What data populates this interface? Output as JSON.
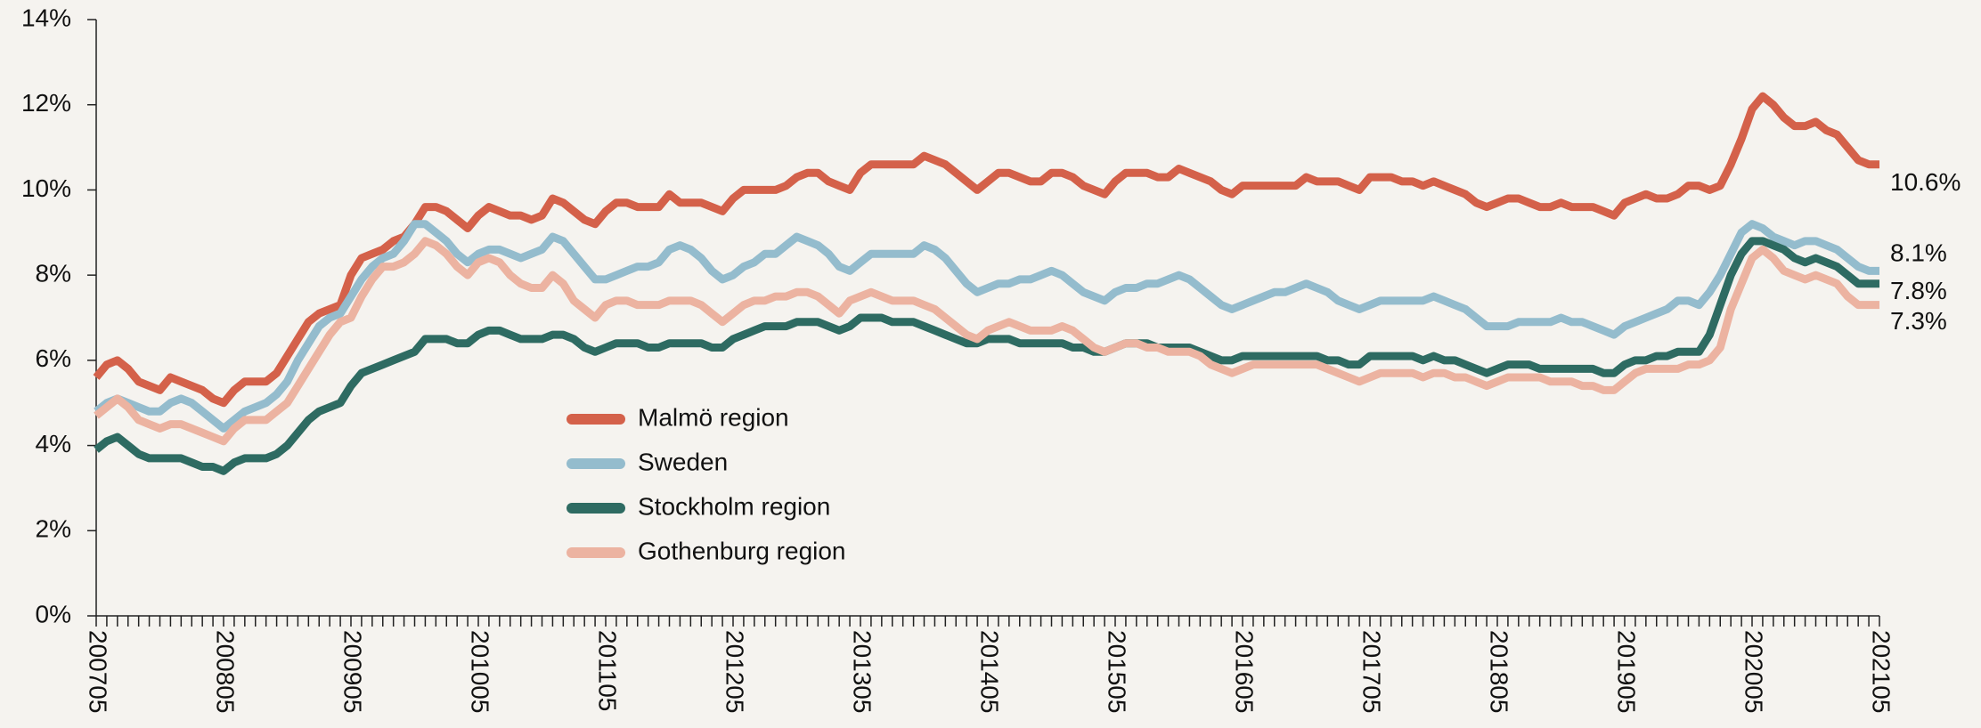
{
  "chart_data": {
    "type": "line",
    "categories": [
      "200705",
      null,
      null,
      null,
      null,
      null,
      null,
      null,
      null,
      null,
      null,
      null,
      "200805",
      null,
      null,
      null,
      null,
      null,
      null,
      null,
      null,
      null,
      null,
      null,
      "200905",
      null,
      null,
      null,
      null,
      null,
      null,
      null,
      null,
      null,
      null,
      null,
      "201005",
      null,
      null,
      null,
      null,
      null,
      null,
      null,
      null,
      null,
      null,
      null,
      "201105",
      null,
      null,
      null,
      null,
      null,
      null,
      null,
      null,
      null,
      null,
      null,
      "201205",
      null,
      null,
      null,
      null,
      null,
      null,
      null,
      null,
      null,
      null,
      null,
      "201305",
      null,
      null,
      null,
      null,
      null,
      null,
      null,
      null,
      null,
      null,
      null,
      "201405",
      null,
      null,
      null,
      null,
      null,
      null,
      null,
      null,
      null,
      null,
      null,
      "201505",
      null,
      null,
      null,
      null,
      null,
      null,
      null,
      null,
      null,
      null,
      null,
      "201605",
      null,
      null,
      null,
      null,
      null,
      null,
      null,
      null,
      null,
      null,
      null,
      "201705",
      null,
      null,
      null,
      null,
      null,
      null,
      null,
      null,
      null,
      null,
      null,
      "201805",
      null,
      null,
      null,
      null,
      null,
      null,
      null,
      null,
      null,
      null,
      null,
      "201905",
      null,
      null,
      null,
      null,
      null,
      null,
      null,
      null,
      null,
      null,
      null,
      "202005",
      null,
      null,
      null,
      null,
      null,
      null,
      null,
      null,
      null,
      null,
      null,
      "202105"
    ],
    "series": [
      {
        "name": "Malmö region",
        "color": "#d4614a",
        "end_label": "10.6%",
        "values": [
          5.6,
          5.9,
          6.0,
          5.8,
          5.5,
          5.4,
          5.3,
          5.6,
          5.5,
          5.4,
          5.3,
          5.1,
          5.0,
          5.3,
          5.5,
          5.5,
          5.5,
          5.7,
          6.1,
          6.5,
          6.9,
          7.1,
          7.2,
          7.3,
          8.0,
          8.4,
          8.5,
          8.6,
          8.8,
          8.9,
          9.2,
          9.6,
          9.6,
          9.5,
          9.3,
          9.1,
          9.4,
          9.6,
          9.5,
          9.4,
          9.4,
          9.3,
          9.4,
          9.8,
          9.7,
          9.5,
          9.3,
          9.2,
          9.5,
          9.7,
          9.7,
          9.6,
          9.6,
          9.6,
          9.9,
          9.7,
          9.7,
          9.7,
          9.6,
          9.5,
          9.8,
          10.0,
          10.0,
          10.0,
          10.0,
          10.1,
          10.3,
          10.4,
          10.4,
          10.2,
          10.1,
          10.0,
          10.4,
          10.6,
          10.6,
          10.6,
          10.6,
          10.6,
          10.8,
          10.7,
          10.6,
          10.4,
          10.2,
          10.0,
          10.2,
          10.4,
          10.4,
          10.3,
          10.2,
          10.2,
          10.4,
          10.4,
          10.3,
          10.1,
          10.0,
          9.9,
          10.2,
          10.4,
          10.4,
          10.4,
          10.3,
          10.3,
          10.5,
          10.4,
          10.3,
          10.2,
          10.0,
          9.9,
          10.1,
          10.1,
          10.1,
          10.1,
          10.1,
          10.1,
          10.3,
          10.2,
          10.2,
          10.2,
          10.1,
          10.0,
          10.3,
          10.3,
          10.3,
          10.2,
          10.2,
          10.1,
          10.2,
          10.1,
          10.0,
          9.9,
          9.7,
          9.6,
          9.7,
          9.8,
          9.8,
          9.7,
          9.6,
          9.6,
          9.7,
          9.6,
          9.6,
          9.6,
          9.5,
          9.4,
          9.7,
          9.8,
          9.9,
          9.8,
          9.8,
          9.9,
          10.1,
          10.1,
          10.0,
          10.1,
          10.6,
          11.2,
          11.9,
          12.2,
          12.0,
          11.7,
          11.5,
          11.5,
          11.6,
          11.4,
          11.3,
          11.0,
          10.7,
          10.6,
          10.6
        ]
      },
      {
        "name": "Sweden",
        "color": "#94bccd",
        "end_label": "8.1%",
        "values": [
          4.8,
          5.0,
          5.1,
          5.0,
          4.9,
          4.8,
          4.8,
          5.0,
          5.1,
          5.0,
          4.8,
          4.6,
          4.4,
          4.6,
          4.8,
          4.9,
          5.0,
          5.2,
          5.5,
          6.0,
          6.4,
          6.8,
          7.0,
          7.1,
          7.5,
          7.9,
          8.2,
          8.4,
          8.5,
          8.8,
          9.2,
          9.2,
          9.0,
          8.8,
          8.5,
          8.3,
          8.5,
          8.6,
          8.6,
          8.5,
          8.4,
          8.5,
          8.6,
          8.9,
          8.8,
          8.5,
          8.2,
          7.9,
          7.9,
          8.0,
          8.1,
          8.2,
          8.2,
          8.3,
          8.6,
          8.7,
          8.6,
          8.4,
          8.1,
          7.9,
          8.0,
          8.2,
          8.3,
          8.5,
          8.5,
          8.7,
          8.9,
          8.8,
          8.7,
          8.5,
          8.2,
          8.1,
          8.3,
          8.5,
          8.5,
          8.5,
          8.5,
          8.5,
          8.7,
          8.6,
          8.4,
          8.1,
          7.8,
          7.6,
          7.7,
          7.8,
          7.8,
          7.9,
          7.9,
          8.0,
          8.1,
          8.0,
          7.8,
          7.6,
          7.5,
          7.4,
          7.6,
          7.7,
          7.7,
          7.8,
          7.8,
          7.9,
          8.0,
          7.9,
          7.7,
          7.5,
          7.3,
          7.2,
          7.3,
          7.4,
          7.5,
          7.6,
          7.6,
          7.7,
          7.8,
          7.7,
          7.6,
          7.4,
          7.3,
          7.2,
          7.3,
          7.4,
          7.4,
          7.4,
          7.4,
          7.4,
          7.5,
          7.4,
          7.3,
          7.2,
          7.0,
          6.8,
          6.8,
          6.8,
          6.9,
          6.9,
          6.9,
          6.9,
          7.0,
          6.9,
          6.9,
          6.8,
          6.7,
          6.6,
          6.8,
          6.9,
          7.0,
          7.1,
          7.2,
          7.4,
          7.4,
          7.3,
          7.6,
          8.0,
          8.5,
          9.0,
          9.2,
          9.1,
          8.9,
          8.8,
          8.7,
          8.8,
          8.8,
          8.7,
          8.6,
          8.4,
          8.2,
          8.1,
          8.1
        ]
      },
      {
        "name": "Stockholm region",
        "color": "#2e6b62",
        "end_label": "7.8%",
        "values": [
          3.9,
          4.1,
          4.2,
          4.0,
          3.8,
          3.7,
          3.7,
          3.7,
          3.7,
          3.6,
          3.5,
          3.5,
          3.4,
          3.6,
          3.7,
          3.7,
          3.7,
          3.8,
          4.0,
          4.3,
          4.6,
          4.8,
          4.9,
          5.0,
          5.4,
          5.7,
          5.8,
          5.9,
          6.0,
          6.1,
          6.2,
          6.5,
          6.5,
          6.5,
          6.4,
          6.4,
          6.6,
          6.7,
          6.7,
          6.6,
          6.5,
          6.5,
          6.5,
          6.6,
          6.6,
          6.5,
          6.3,
          6.2,
          6.3,
          6.4,
          6.4,
          6.4,
          6.3,
          6.3,
          6.4,
          6.4,
          6.4,
          6.4,
          6.3,
          6.3,
          6.5,
          6.6,
          6.7,
          6.8,
          6.8,
          6.8,
          6.9,
          6.9,
          6.9,
          6.8,
          6.7,
          6.8,
          7.0,
          7.0,
          7.0,
          6.9,
          6.9,
          6.9,
          6.8,
          6.7,
          6.6,
          6.5,
          6.4,
          6.4,
          6.5,
          6.5,
          6.5,
          6.4,
          6.4,
          6.4,
          6.4,
          6.4,
          6.3,
          6.3,
          6.2,
          6.2,
          6.3,
          6.4,
          6.4,
          6.4,
          6.3,
          6.3,
          6.3,
          6.3,
          6.2,
          6.1,
          6.0,
          6.0,
          6.1,
          6.1,
          6.1,
          6.1,
          6.1,
          6.1,
          6.1,
          6.1,
          6.0,
          6.0,
          5.9,
          5.9,
          6.1,
          6.1,
          6.1,
          6.1,
          6.1,
          6.0,
          6.1,
          6.0,
          6.0,
          5.9,
          5.8,
          5.7,
          5.8,
          5.9,
          5.9,
          5.9,
          5.8,
          5.8,
          5.8,
          5.8,
          5.8,
          5.8,
          5.7,
          5.7,
          5.9,
          6.0,
          6.0,
          6.1,
          6.1,
          6.2,
          6.2,
          6.2,
          6.6,
          7.3,
          8.0,
          8.5,
          8.8,
          8.8,
          8.7,
          8.6,
          8.4,
          8.3,
          8.4,
          8.3,
          8.2,
          8.0,
          7.8,
          7.8,
          7.8
        ]
      },
      {
        "name": "Gothenburg region",
        "color": "#ecb3a1",
        "end_label": "7.3%",
        "values": [
          4.7,
          4.9,
          5.1,
          4.9,
          4.6,
          4.5,
          4.4,
          4.5,
          4.5,
          4.4,
          4.3,
          4.2,
          4.1,
          4.4,
          4.6,
          4.6,
          4.6,
          4.8,
          5.0,
          5.4,
          5.8,
          6.2,
          6.6,
          6.9,
          7.0,
          7.5,
          7.9,
          8.2,
          8.2,
          8.3,
          8.5,
          8.8,
          8.7,
          8.5,
          8.2,
          8.0,
          8.3,
          8.4,
          8.3,
          8.0,
          7.8,
          7.7,
          7.7,
          8.0,
          7.8,
          7.4,
          7.2,
          7.0,
          7.3,
          7.4,
          7.4,
          7.3,
          7.3,
          7.3,
          7.4,
          7.4,
          7.4,
          7.3,
          7.1,
          6.9,
          7.1,
          7.3,
          7.4,
          7.4,
          7.5,
          7.5,
          7.6,
          7.6,
          7.5,
          7.3,
          7.1,
          7.4,
          7.5,
          7.6,
          7.5,
          7.4,
          7.4,
          7.4,
          7.3,
          7.2,
          7.0,
          6.8,
          6.6,
          6.5,
          6.7,
          6.8,
          6.9,
          6.8,
          6.7,
          6.7,
          6.7,
          6.8,
          6.7,
          6.5,
          6.3,
          6.2,
          6.3,
          6.4,
          6.4,
          6.3,
          6.3,
          6.2,
          6.2,
          6.2,
          6.1,
          5.9,
          5.8,
          5.7,
          5.8,
          5.9,
          5.9,
          5.9,
          5.9,
          5.9,
          5.9,
          5.9,
          5.8,
          5.7,
          5.6,
          5.5,
          5.6,
          5.7,
          5.7,
          5.7,
          5.7,
          5.6,
          5.7,
          5.7,
          5.6,
          5.6,
          5.5,
          5.4,
          5.5,
          5.6,
          5.6,
          5.6,
          5.6,
          5.5,
          5.5,
          5.5,
          5.4,
          5.4,
          5.3,
          5.3,
          5.5,
          5.7,
          5.8,
          5.8,
          5.8,
          5.8,
          5.9,
          5.9,
          6.0,
          6.3,
          7.2,
          7.8,
          8.4,
          8.6,
          8.4,
          8.1,
          8.0,
          7.9,
          8.0,
          7.9,
          7.8,
          7.5,
          7.3,
          7.3,
          7.3
        ]
      }
    ],
    "ylim": [
      0,
      14
    ],
    "yticks": [
      {
        "value": 0,
        "label": "0%"
      },
      {
        "value": 2,
        "label": "2%"
      },
      {
        "value": 4,
        "label": "4%"
      },
      {
        "value": 6,
        "label": "6%"
      },
      {
        "value": 8,
        "label": "8%"
      },
      {
        "value": 10,
        "label": "10%"
      },
      {
        "value": 12,
        "label": "12%"
      },
      {
        "value": 14,
        "label": "14%"
      }
    ],
    "grid": false
  }
}
